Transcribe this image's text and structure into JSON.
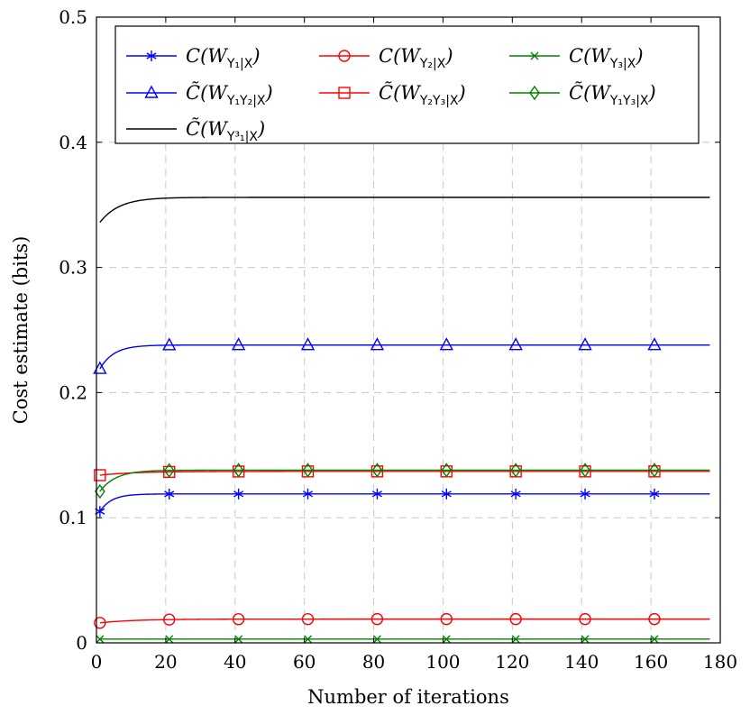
{
  "chart_data": {
    "type": "line",
    "title": "",
    "xlabel": "Number of iterations",
    "ylabel": "Cost estimate (bits)",
    "xlim": [
      0,
      180
    ],
    "ylim": [
      0,
      0.5
    ],
    "xticks": [
      0,
      20,
      40,
      60,
      80,
      100,
      120,
      140,
      160,
      180
    ],
    "yticks": [
      0,
      0.1,
      0.2,
      0.3,
      0.4,
      0.5
    ],
    "grid": true,
    "legend_position": "top",
    "series": [
      {
        "name": "C(W_{Y1|X})",
        "legend": {
          "base": "C(W",
          "sub": "Y₁|X",
          "close": ")"
        },
        "color": "#0000ff",
        "marker": "star",
        "x_start": 1,
        "x_end": 177,
        "y_start": 0.105,
        "y_end": 0.119,
        "rate": 0.3,
        "marker_x": [
          1,
          21,
          41,
          61,
          81,
          101,
          121,
          141,
          161
        ]
      },
      {
        "name": "C(W_{Y2|X})",
        "legend": {
          "base": "C(W",
          "sub": "Y₂|X",
          "close": ")"
        },
        "color": "#ff0000",
        "marker": "circle",
        "x_start": 1,
        "x_end": 177,
        "y_start": 0.016,
        "y_end": 0.019,
        "rate": 0.1,
        "marker_x": [
          1,
          21,
          41,
          61,
          81,
          101,
          121,
          141,
          161
        ]
      },
      {
        "name": "C(W_{Y3|X})",
        "legend": {
          "base": "C(W",
          "sub": "Y₃|X",
          "close": ")"
        },
        "color": "#008000",
        "marker": "x",
        "x_start": 1,
        "x_end": 177,
        "y_start": 0.003,
        "y_end": 0.003,
        "rate": 0.2,
        "marker_x": [
          1,
          21,
          41,
          61,
          81,
          101,
          121,
          141,
          161
        ]
      },
      {
        "name": "C̃(W_{Y1Y2|X})",
        "legend": {
          "base": "C̃(W",
          "sub": "Y₁Y₂|X",
          "close": ")"
        },
        "color": "#0000ff",
        "marker": "triangle",
        "x_start": 1,
        "x_end": 177,
        "y_start": 0.219,
        "y_end": 0.238,
        "rate": 0.25,
        "marker_x": [
          1,
          21,
          41,
          61,
          81,
          101,
          121,
          141,
          161
        ]
      },
      {
        "name": "C̃(W_{Y2Y3|X})",
        "legend": {
          "base": "C̃(W",
          "sub": "Y₂Y₃|X",
          "close": ")"
        },
        "color": "#ff0000",
        "marker": "square",
        "x_start": 1,
        "x_end": 177,
        "y_start": 0.134,
        "y_end": 0.137,
        "rate": 0.1,
        "marker_x": [
          1,
          21,
          41,
          61,
          81,
          101,
          121,
          141,
          161
        ]
      },
      {
        "name": "C̃(W_{Y1Y3|X})",
        "legend": {
          "base": "C̃(W",
          "sub": "Y₁Y₃|X",
          "close": ")"
        },
        "color": "#008000",
        "marker": "diamond",
        "x_start": 1,
        "x_end": 177,
        "y_start": 0.121,
        "y_end": 0.138,
        "rate": 0.22,
        "marker_x": [
          1,
          21,
          41,
          61,
          81,
          101,
          121,
          141,
          161
        ]
      },
      {
        "name": "C̃(W_{Y1^3|X})",
        "legend": {
          "base": "C̃(W",
          "sub": "Y³₁|X",
          "close": ")"
        },
        "color": "#000000",
        "marker": "none",
        "x_start": 1,
        "x_end": 177,
        "y_start": 0.336,
        "y_end": 0.356,
        "rate": 0.18,
        "marker_x": []
      }
    ]
  }
}
